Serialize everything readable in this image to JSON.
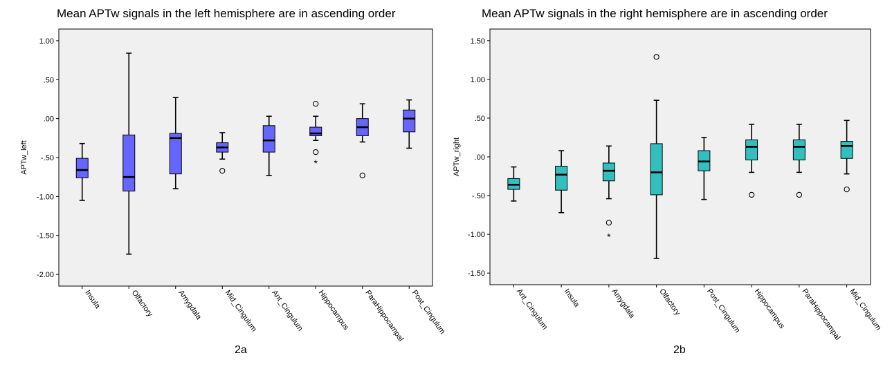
{
  "chart_data": [
    {
      "type": "boxplot",
      "title": "Mean APTw signals in the left hemisphere are in ascending order",
      "caption": "2a",
      "ylabel": "APTw_left",
      "xlabel": "",
      "ylim": [
        -2.15,
        1.15
      ],
      "yticks": [
        1.0,
        0.5,
        0.0,
        -0.5,
        -1.0,
        -1.5,
        -2.0
      ],
      "yticklabels": [
        "1.00",
        ".50",
        ".00",
        "-.50",
        "-1.00",
        "-1.50",
        "-2.00"
      ],
      "fill_color": "#6666ff",
      "categories": [
        "Insula",
        "Olfactory",
        "Amygdala",
        "Mid_Cingulum",
        "Ant_Cingulum",
        "Hippocampus",
        "ParaHippocampal",
        "Post_Cingulum"
      ],
      "boxes": [
        {
          "whisker_low": -1.05,
          "q1": -0.76,
          "median": -0.66,
          "q3": -0.51,
          "whisker_high": -0.32,
          "outliers": [],
          "extremes": []
        },
        {
          "whisker_low": -1.74,
          "q1": -0.93,
          "median": -0.75,
          "q3": -0.21,
          "whisker_high": 0.84,
          "outliers": [],
          "extremes": []
        },
        {
          "whisker_low": -0.9,
          "q1": -0.71,
          "median": -0.25,
          "q3": -0.19,
          "whisker_high": 0.27,
          "outliers": [],
          "extremes": []
        },
        {
          "whisker_low": -0.52,
          "q1": -0.43,
          "median": -0.37,
          "q3": -0.31,
          "whisker_high": -0.18,
          "outliers": [
            -0.67
          ],
          "extremes": []
        },
        {
          "whisker_low": -0.73,
          "q1": -0.43,
          "median": -0.28,
          "q3": -0.09,
          "whisker_high": 0.03,
          "outliers": [],
          "extremes": []
        },
        {
          "whisker_low": -0.28,
          "q1": -0.22,
          "median": -0.19,
          "q3": -0.11,
          "whisker_high": 0.03,
          "outliers": [
            0.19,
            -0.43
          ],
          "extremes": [
            -0.56
          ]
        },
        {
          "whisker_low": -0.3,
          "q1": -0.22,
          "median": -0.11,
          "q3": 0.0,
          "whisker_high": 0.19,
          "outliers": [
            -0.73
          ],
          "extremes": []
        },
        {
          "whisker_low": -0.38,
          "q1": -0.17,
          "median": 0.0,
          "q3": 0.11,
          "whisker_high": 0.24,
          "outliers": [],
          "extremes": []
        }
      ]
    },
    {
      "type": "boxplot",
      "title": "Mean APTw signals in the right hemisphere are in ascending order",
      "caption": "2b",
      "ylabel": "APTw_right",
      "xlabel": "",
      "ylim": [
        -1.65,
        1.65
      ],
      "yticks": [
        1.5,
        1.0,
        0.5,
        0.0,
        -0.5,
        -1.0,
        -1.5
      ],
      "yticklabels": [
        "1.50",
        "1.00",
        ".50",
        ".00",
        "-.50",
        "-1.00",
        "-1.50"
      ],
      "fill_color": "#33bfbf",
      "categories": [
        "Ant_Cingulum",
        "Insula",
        "Amygdala",
        "Olfactory",
        "Post_Cingulum",
        "Hippocampus",
        "ParaHippocampal",
        "Mid_Cingulum"
      ],
      "boxes": [
        {
          "whisker_low": -0.57,
          "q1": -0.42,
          "median": -0.36,
          "q3": -0.28,
          "whisker_high": -0.13,
          "outliers": [],
          "extremes": []
        },
        {
          "whisker_low": -0.72,
          "q1": -0.43,
          "median": -0.23,
          "q3": -0.12,
          "whisker_high": 0.08,
          "outliers": [],
          "extremes": []
        },
        {
          "whisker_low": -0.54,
          "q1": -0.31,
          "median": -0.18,
          "q3": -0.08,
          "whisker_high": 0.14,
          "outliers": [
            -0.85
          ],
          "extremes": [
            -1.02
          ]
        },
        {
          "whisker_low": -1.31,
          "q1": -0.49,
          "median": -0.2,
          "q3": 0.17,
          "whisker_high": 0.73,
          "outliers": [
            1.29
          ],
          "extremes": []
        },
        {
          "whisker_low": -0.55,
          "q1": -0.18,
          "median": -0.06,
          "q3": 0.08,
          "whisker_high": 0.25,
          "outliers": [],
          "extremes": []
        },
        {
          "whisker_low": -0.2,
          "q1": -0.04,
          "median": 0.13,
          "q3": 0.22,
          "whisker_high": 0.42,
          "outliers": [
            -0.49
          ],
          "extremes": []
        },
        {
          "whisker_low": -0.2,
          "q1": -0.04,
          "median": 0.13,
          "q3": 0.22,
          "whisker_high": 0.42,
          "outliers": [
            -0.49
          ],
          "extremes": []
        },
        {
          "whisker_low": -0.22,
          "q1": -0.02,
          "median": 0.14,
          "q3": 0.2,
          "whisker_high": 0.47,
          "outliers": [
            -0.42
          ],
          "extremes": []
        }
      ]
    }
  ]
}
